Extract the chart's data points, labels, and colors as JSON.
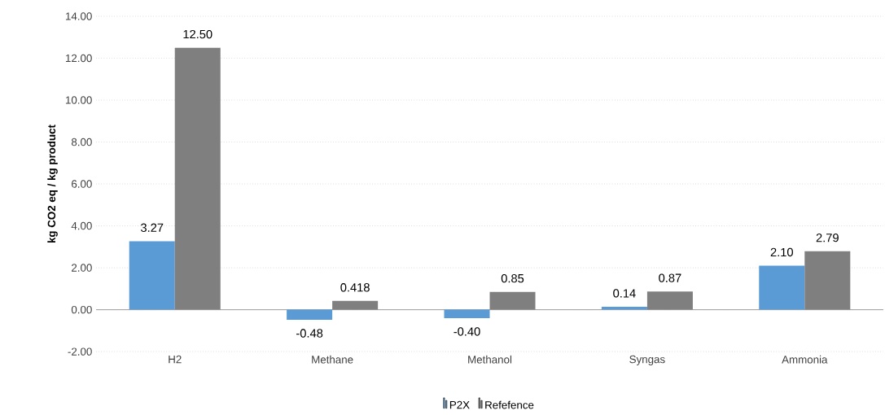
{
  "chart_data": {
    "type": "bar",
    "ylabel": "kg CO2 eq  /  kg product",
    "categories": [
      "H2",
      "Methane",
      "Methanol",
      "Syngas",
      "Ammonia"
    ],
    "series": [
      {
        "name": "P2X",
        "color": "#5b9bd5",
        "values": [
          3.27,
          -0.48,
          -0.4,
          0.14,
          2.1
        ],
        "value_labels": [
          "3.27",
          "-0.48",
          "-0.40",
          "0.14",
          "2.10"
        ]
      },
      {
        "name": "Refefence",
        "color": "#7f7f7f",
        "values": [
          12.5,
          0.418,
          0.85,
          0.87,
          2.79
        ],
        "value_labels": [
          "12.50",
          "0.418",
          "0.85",
          "0.87",
          "2.79"
        ]
      }
    ],
    "ylim": [
      -2,
      14
    ],
    "yticks": [
      {
        "value": -2,
        "label": "-2.00"
      },
      {
        "value": 0,
        "label": "0.00"
      },
      {
        "value": 2,
        "label": "2.00"
      },
      {
        "value": 4,
        "label": "4.00"
      },
      {
        "value": 6,
        "label": "6.00"
      },
      {
        "value": 8,
        "label": "8.00"
      },
      {
        "value": 10,
        "label": "10.00"
      },
      {
        "value": 12,
        "label": "12.00"
      },
      {
        "value": 14,
        "label": "14.00"
      }
    ],
    "grid": "y",
    "legend": "bottom"
  }
}
